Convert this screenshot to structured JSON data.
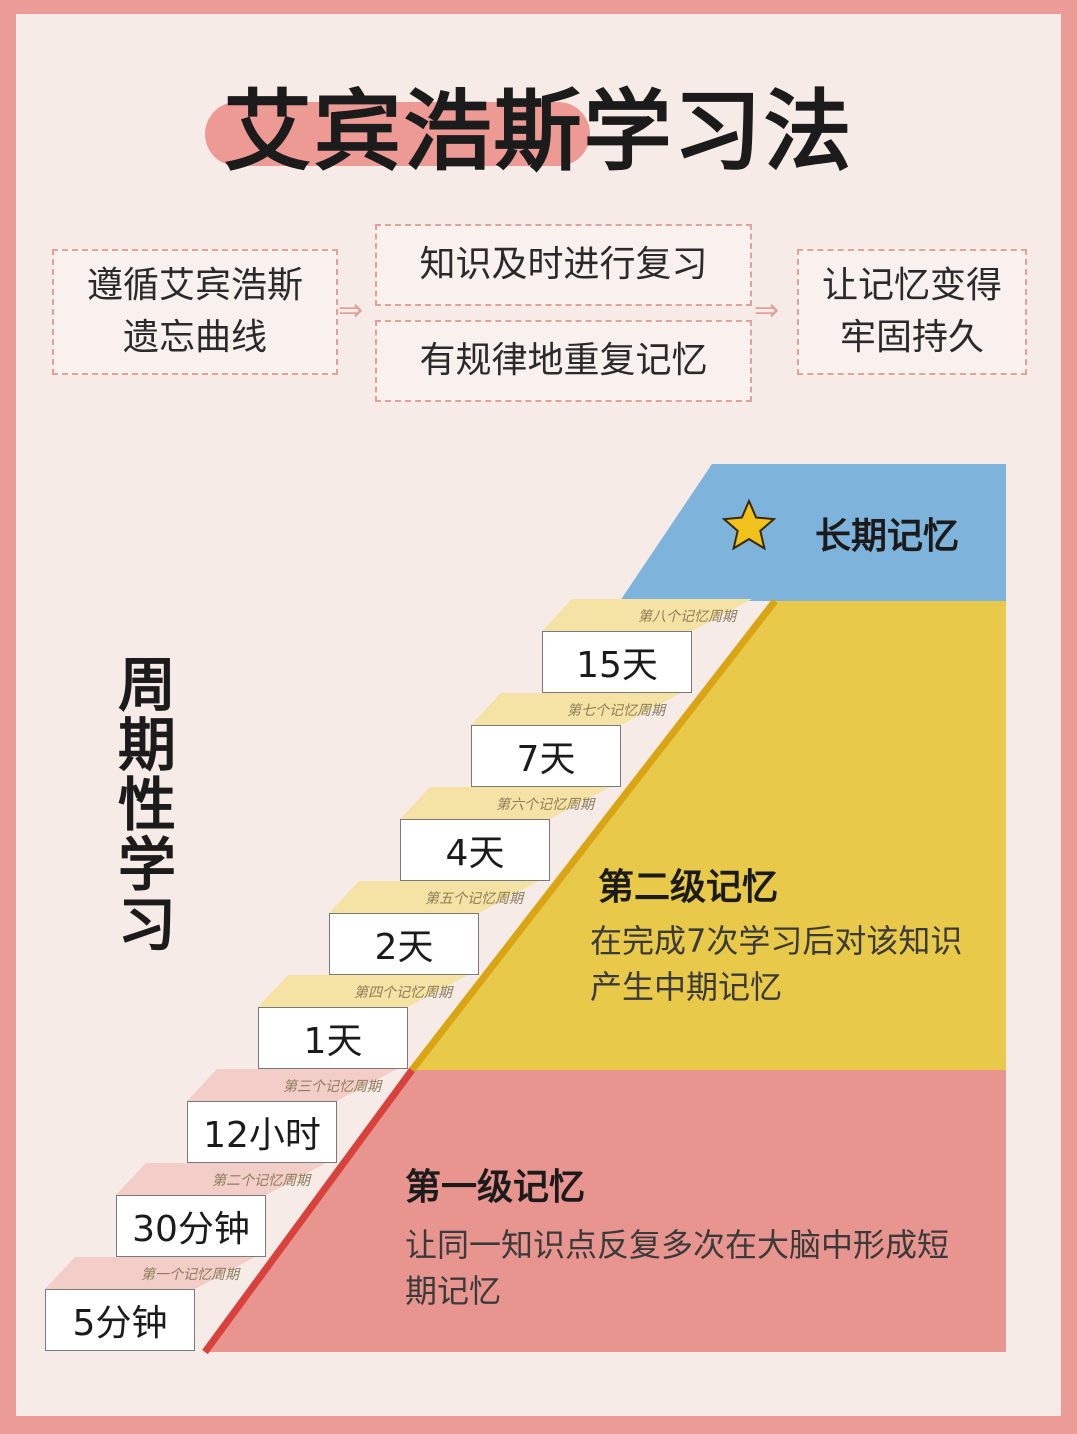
{
  "title": "艾宾浩斯学习法",
  "flow": {
    "left": "遵循艾宾浩斯\n遗忘曲线",
    "middle_top": "知识及时进行复习",
    "middle_bottom": "有规律地重复记忆",
    "right": "让记忆变得\n牢固持久",
    "arrow_icon": "⇒"
  },
  "side_title": "周期性学习",
  "steps": [
    {
      "cycle": "第一个记忆周期",
      "time": "5分钟"
    },
    {
      "cycle": "第二个记忆周期",
      "time": "30分钟"
    },
    {
      "cycle": "第三个记忆周期",
      "time": "12小时"
    },
    {
      "cycle": "第四个记忆周期",
      "time": "1天"
    },
    {
      "cycle": "第五个记忆周期",
      "time": "2天"
    },
    {
      "cycle": "第六个记忆周期",
      "time": "4天"
    },
    {
      "cycle": "第七个记忆周期",
      "time": "7天"
    },
    {
      "cycle": "第八个记忆周期",
      "time": "15天"
    }
  ],
  "levels": {
    "long_term": {
      "title": "长期记忆",
      "icon": "star-icon",
      "color": "#7eb3dc"
    },
    "second": {
      "title": "第二级记忆",
      "desc": "在完成7次学习后对该知识产生中期记忆",
      "color": "#e9c94a"
    },
    "first": {
      "title": "第一级记忆",
      "desc": "让同一知识点反复多次在大脑中形成短期记忆",
      "color": "#e89590"
    }
  }
}
